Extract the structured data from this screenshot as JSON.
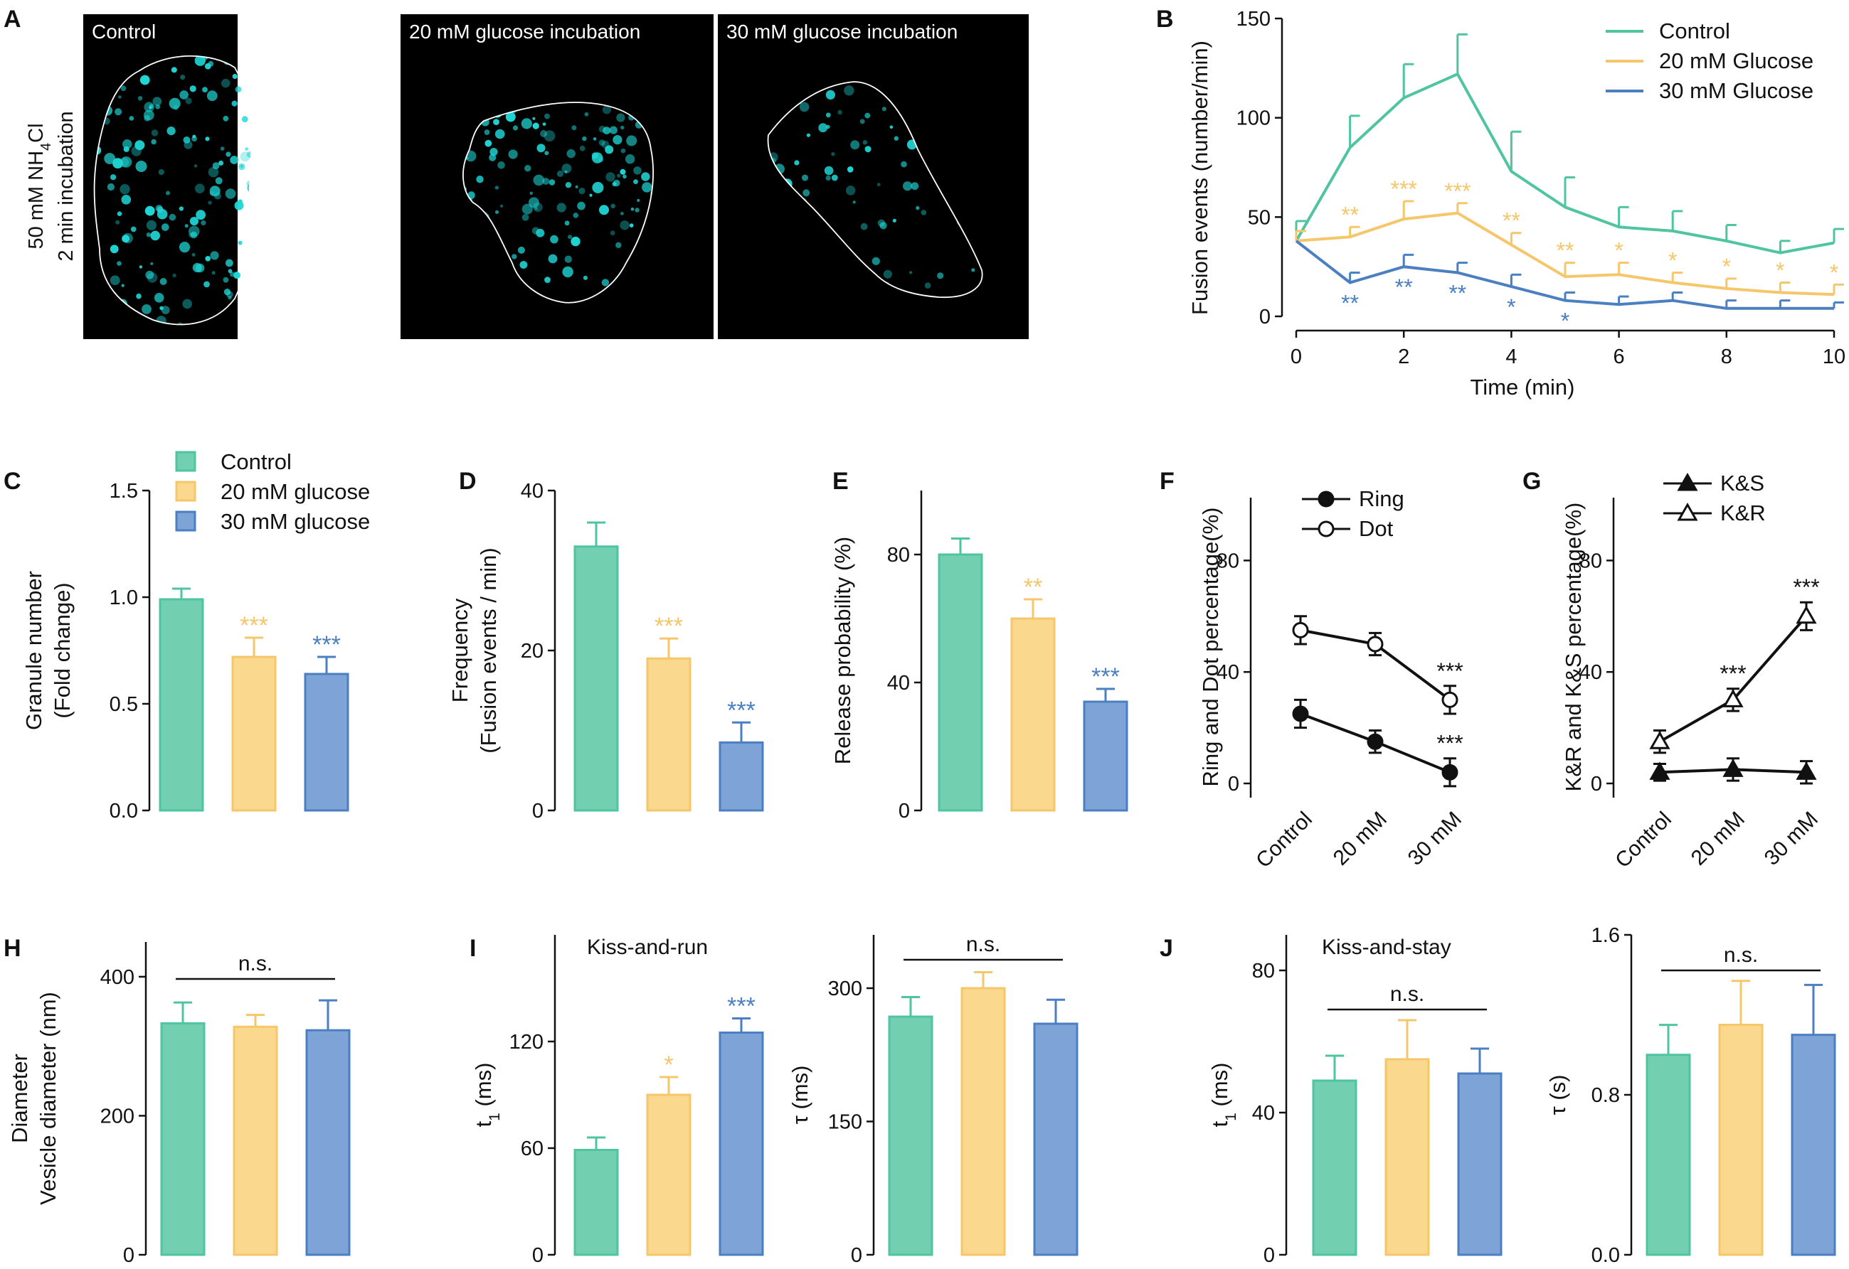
{
  "colors": {
    "control": "#4fc4a0",
    "control_fill": "#72cfb0",
    "g20": "#f5c66a",
    "g20_fill": "#fad98f",
    "g30": "#4a7fc1",
    "g30_fill": "#7ea3d6",
    "black": "#111111",
    "micro_bg": "#000000",
    "micro_dot": "#1fd6d6"
  },
  "panel_a": {
    "letter": "A",
    "side_label_1": "50 mM NH",
    "side_label_sub": "4",
    "side_label_1b": "Cl",
    "side_label_2": "2 min incubation",
    "images": [
      {
        "label": "Control"
      },
      {
        "label": "20 mM glucose incubation"
      },
      {
        "label": "30 mM glucose incubation"
      }
    ]
  },
  "chart_data": [
    {
      "id": "B",
      "type": "line",
      "letter": "B",
      "xlabel": "Time (min)",
      "ylabel": "Fusion events (number/min)",
      "xlim": [
        0,
        10
      ],
      "ylim": [
        0,
        150
      ],
      "xticks": [
        0,
        2,
        4,
        6,
        8,
        10
      ],
      "yticks": [
        0,
        50,
        100,
        150
      ],
      "x": [
        0,
        1,
        2,
        3,
        4,
        5,
        6,
        7,
        8,
        9,
        10
      ],
      "series": [
        {
          "name": "Control",
          "color": "#4fc4a0",
          "values": [
            38,
            85,
            110,
            122,
            73,
            55,
            45,
            43,
            38,
            32,
            37
          ],
          "errors": [
            10,
            16,
            17,
            20,
            20,
            15,
            10,
            10,
            8,
            6,
            7
          ],
          "stars": []
        },
        {
          "name": "20 mM Glucose",
          "color": "#f5c66a",
          "values": [
            38,
            40,
            49,
            52,
            36,
            20,
            21,
            17,
            14,
            12,
            11
          ],
          "errors": [
            5,
            5,
            9,
            5,
            6,
            7,
            6,
            5,
            5,
            5,
            5
          ],
          "stars": [
            "",
            "**",
            "***",
            "***",
            "**",
            "**",
            "*",
            "*",
            "*",
            "*",
            "*"
          ]
        },
        {
          "name": "30 mM Glucose",
          "color": "#4a7fc1",
          "values": [
            38,
            17,
            25,
            22,
            15,
            8,
            6,
            8,
            4,
            4,
            4
          ],
          "errors": [
            0,
            5,
            6,
            5,
            6,
            4,
            4,
            4,
            4,
            4,
            3
          ],
          "stars": [
            "",
            "**",
            "**",
            "**",
            "*",
            "*",
            "",
            "",
            "",
            "",
            ""
          ]
        }
      ]
    },
    {
      "id": "C",
      "type": "bar",
      "letter": "C",
      "ylabel_lines": [
        "Granule number",
        "(Fold change)"
      ],
      "ylim": [
        0,
        1.5
      ],
      "yticks": [
        0.0,
        0.5,
        1.0,
        1.5
      ],
      "categories": [
        "Control",
        "20 mM glucose",
        "30 mM glucose"
      ],
      "values": [
        0.99,
        0.72,
        0.64
      ],
      "errors": [
        0.05,
        0.09,
        0.08
      ],
      "stars": [
        "",
        "***",
        "***"
      ],
      "legend": [
        "Control",
        "20 mM glucose",
        "30 mM glucose"
      ]
    },
    {
      "id": "D",
      "type": "bar",
      "letter": "D",
      "ylabel_lines": [
        "Frequency",
        "(Fusion events / min)"
      ],
      "ylim": [
        0,
        40
      ],
      "yticks": [
        0,
        20,
        40
      ],
      "categories": [
        "Control",
        "20 mM glucose",
        "30 mM glucose"
      ],
      "values": [
        33,
        19,
        8.5
      ],
      "errors": [
        3,
        2.5,
        2.5
      ],
      "stars": [
        "",
        "***",
        "***"
      ]
    },
    {
      "id": "E",
      "type": "bar",
      "letter": "E",
      "ylabel_lines": [
        "Release probability (%)"
      ],
      "ylim": [
        0,
        100
      ],
      "yticks": [
        0,
        40,
        80
      ],
      "categories": [
        "Control",
        "20 mM glucose",
        "30 mM glucose"
      ],
      "values": [
        80,
        60,
        34
      ],
      "errors": [
        5,
        6,
        4
      ],
      "stars": [
        "",
        "**",
        "***"
      ]
    },
    {
      "id": "F",
      "type": "line",
      "letter": "F",
      "ylabel": "Ring and Dot percentage(%)",
      "ylim": [
        0,
        100
      ],
      "yticks": [
        0,
        40,
        80
      ],
      "categories": [
        "Control",
        "20 mM",
        "30 mM"
      ],
      "series": [
        {
          "name": "Ring",
          "marker": "filled-circle",
          "values": [
            25,
            15,
            4
          ],
          "errors": [
            5,
            4,
            5
          ],
          "stars": [
            "",
            "",
            "***"
          ]
        },
        {
          "name": "Dot",
          "marker": "open-circle",
          "values": [
            55,
            50,
            30
          ],
          "errors": [
            5,
            4,
            5
          ],
          "stars": [
            "",
            "",
            "***"
          ]
        }
      ]
    },
    {
      "id": "G",
      "type": "line",
      "letter": "G",
      "ylabel": "K&R and K&S percentage(%)",
      "ylim": [
        0,
        100
      ],
      "yticks": [
        0,
        40,
        80
      ],
      "categories": [
        "Control",
        "20 mM",
        "30 mM"
      ],
      "series": [
        {
          "name": "K&S",
          "marker": "filled-triangle",
          "values": [
            4,
            5,
            4
          ],
          "errors": [
            3,
            4,
            4
          ],
          "stars": [
            "",
            "",
            ""
          ]
        },
        {
          "name": "K&R",
          "marker": "open-triangle",
          "values": [
            15,
            30,
            60
          ],
          "errors": [
            4,
            4,
            5
          ],
          "stars": [
            "",
            "***",
            "***"
          ]
        }
      ]
    },
    {
      "id": "H",
      "type": "bar",
      "letter": "H",
      "ylabel_lines": [
        "Diameter",
        "Vesicle diameter (nm)"
      ],
      "ylim": [
        0,
        450
      ],
      "yticks": [
        0,
        200,
        400
      ],
      "categories": [
        "Control",
        "20 mM glucose",
        "30 mM glucose"
      ],
      "values": [
        333,
        328,
        323
      ],
      "errors": [
        30,
        17,
        43
      ],
      "stars": [
        "",
        "",
        ""
      ],
      "annotation": "n.s."
    },
    {
      "id": "I1",
      "type": "bar",
      "letter": "I",
      "title": "Kiss-and-run",
      "ylabel_main": "t",
      "ylabel_sub": "1",
      "ylabel_tail": " (ms)",
      "ylim": [
        0,
        180
      ],
      "yticks": [
        0,
        60,
        120
      ],
      "categories": [
        "Control",
        "20 mM glucose",
        "30 mM glucose"
      ],
      "values": [
        59,
        90,
        125
      ],
      "errors": [
        7,
        10,
        8
      ],
      "stars": [
        "",
        "*",
        "***"
      ]
    },
    {
      "id": "I2",
      "type": "bar",
      "letter": "",
      "ylabel_main": "τ (ms)",
      "ylim": [
        0,
        360
      ],
      "yticks": [
        0,
        150,
        300
      ],
      "categories": [
        "Control",
        "20 mM glucose",
        "30 mM glucose"
      ],
      "values": [
        268,
        300,
        260
      ],
      "errors": [
        22,
        18,
        27
      ],
      "stars": [
        "",
        "",
        ""
      ],
      "annotation": "n.s."
    },
    {
      "id": "J1",
      "type": "bar",
      "letter": "J",
      "title": "Kiss-and-stay",
      "ylabel_main": "t",
      "ylabel_sub": "1",
      "ylabel_tail": " (ms)",
      "ylim": [
        0,
        90
      ],
      "yticks": [
        0,
        40,
        80
      ],
      "categories": [
        "Control",
        "20 mM glucose",
        "30 mM glucose"
      ],
      "values": [
        49,
        55,
        51
      ],
      "errors": [
        7,
        11,
        7
      ],
      "stars": [
        "",
        "",
        ""
      ],
      "annotation": "n.s."
    },
    {
      "id": "J2",
      "type": "bar",
      "letter": "",
      "ylabel_main": "τ (s)",
      "ylim": [
        0,
        1.6
      ],
      "yticks": [
        0.0,
        0.8,
        1.6
      ],
      "ytick_labels": [
        "0.0",
        "0.8",
        "1.6"
      ],
      "categories": [
        "Control",
        "20 mM glucose",
        "30 mM glucose"
      ],
      "values": [
        1.0,
        1.15,
        1.1
      ],
      "errors": [
        0.15,
        0.22,
        0.25
      ],
      "stars": [
        "",
        "",
        ""
      ],
      "annotation": "n.s."
    }
  ]
}
